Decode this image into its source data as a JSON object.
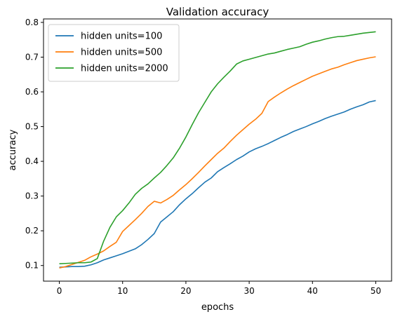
{
  "chart_data": {
    "type": "line",
    "title": "Validation accuracy",
    "xlabel": "epochs",
    "ylabel": "accuracy",
    "xlim": [
      -2.5,
      52.5
    ],
    "ylim": [
      0.055,
      0.81
    ],
    "xticks": [
      0,
      10,
      20,
      30,
      40,
      50
    ],
    "yticks": [
      0.1,
      0.2,
      0.3,
      0.4,
      0.5,
      0.6,
      0.7,
      0.8
    ],
    "grid": false,
    "legend_position": "top-left",
    "x": [
      0,
      1,
      2,
      3,
      4,
      5,
      6,
      7,
      8,
      9,
      10,
      11,
      12,
      13,
      14,
      15,
      16,
      17,
      18,
      19,
      20,
      21,
      22,
      23,
      24,
      25,
      26,
      27,
      28,
      29,
      30,
      31,
      32,
      33,
      34,
      35,
      36,
      37,
      38,
      39,
      40,
      41,
      42,
      43,
      44,
      45,
      46,
      47,
      48,
      49,
      50
    ],
    "series": [
      {
        "name": "hidden units=100",
        "color": "#1f77b4",
        "values": [
          0.095,
          0.096,
          0.097,
          0.097,
          0.098,
          0.102,
          0.108,
          0.116,
          0.122,
          0.128,
          0.134,
          0.141,
          0.148,
          0.16,
          0.175,
          0.192,
          0.225,
          0.24,
          0.255,
          0.275,
          0.292,
          0.307,
          0.324,
          0.34,
          0.352,
          0.37,
          0.382,
          0.393,
          0.405,
          0.415,
          0.427,
          0.436,
          0.443,
          0.451,
          0.46,
          0.469,
          0.477,
          0.486,
          0.493,
          0.5,
          0.508,
          0.515,
          0.523,
          0.53,
          0.536,
          0.542,
          0.55,
          0.557,
          0.563,
          0.571,
          0.575
        ]
      },
      {
        "name": "hidden units=500",
        "color": "#ff7f0e",
        "values": [
          0.093,
          0.097,
          0.103,
          0.109,
          0.115,
          0.125,
          0.133,
          0.142,
          0.155,
          0.167,
          0.198,
          0.215,
          0.232,
          0.25,
          0.27,
          0.285,
          0.28,
          0.29,
          0.302,
          0.318,
          0.333,
          0.35,
          0.368,
          0.387,
          0.405,
          0.423,
          0.438,
          0.457,
          0.475,
          0.491,
          0.507,
          0.521,
          0.538,
          0.572,
          0.585,
          0.597,
          0.608,
          0.618,
          0.627,
          0.636,
          0.645,
          0.652,
          0.659,
          0.666,
          0.671,
          0.678,
          0.684,
          0.69,
          0.694,
          0.698,
          0.701
        ]
      },
      {
        "name": "hidden units=2000",
        "color": "#2ca02c",
        "values": [
          0.105,
          0.106,
          0.107,
          0.108,
          0.108,
          0.11,
          0.12,
          0.17,
          0.21,
          0.24,
          0.258,
          0.28,
          0.305,
          0.322,
          0.335,
          0.352,
          0.368,
          0.388,
          0.41,
          0.438,
          0.47,
          0.506,
          0.54,
          0.57,
          0.6,
          0.623,
          0.642,
          0.66,
          0.68,
          0.689,
          0.694,
          0.699,
          0.704,
          0.709,
          0.712,
          0.717,
          0.722,
          0.726,
          0.73,
          0.737,
          0.743,
          0.747,
          0.752,
          0.756,
          0.759,
          0.76,
          0.763,
          0.766,
          0.769,
          0.771,
          0.773
        ]
      }
    ]
  }
}
